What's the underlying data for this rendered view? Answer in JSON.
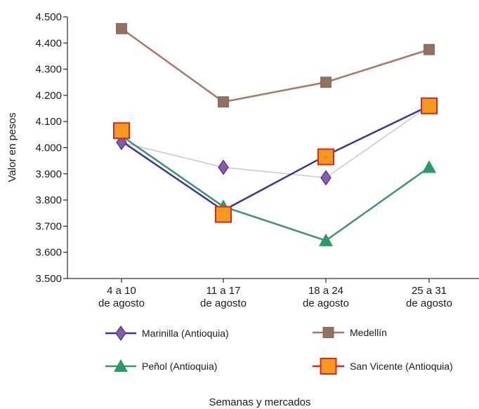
{
  "chart_data": {
    "type": "line",
    "title": "",
    "xlabel": "Semanas y mercados",
    "ylabel": "Valor en pesos",
    "ylim": [
      3500,
      4500
    ],
    "yticks": [
      "3.500",
      "3.600",
      "3.700",
      "3.800",
      "3.900",
      "4.000",
      "4.100",
      "4.200",
      "4.300",
      "4.400",
      "4.500"
    ],
    "grid": false,
    "legend_position": "bottom",
    "categories": [
      [
        "4 a 10",
        "de agosto"
      ],
      [
        "11 a 17",
        "de agosto"
      ],
      [
        "18 a 24",
        "de agosto"
      ],
      [
        "25 a 31",
        "de agosto"
      ]
    ],
    "series": [
      {
        "name": "Marinilla (Antioquia)",
        "marker": "diamond",
        "color": "#3b3594",
        "marker_color": "#8a5ba8",
        "values": [
          4025,
          3760,
          3970,
          4160
        ]
      },
      {
        "name": "Medellín",
        "marker": "square",
        "color": "#a97763",
        "marker_color": "#93705f",
        "values": [
          4455,
          4175,
          4250,
          4375
        ]
      },
      {
        "name": "Peñol (Antioquia)",
        "marker": "triangle",
        "color": "#3e9272",
        "marker_color": "#2a9a66",
        "values": [
          4045,
          3775,
          3645,
          3925
        ]
      },
      {
        "name": "San Vicente (Antioquia)",
        "marker": "square-large",
        "color": "#c9c9c9",
        "marker_color": "#f59a1e",
        "marker_stroke": "#d8281d",
        "values": [
          4065,
          3745,
          3965,
          4160
        ]
      }
    ],
    "extra_points": {
      "series": "Marinilla (Antioquia)",
      "values": [
        4020,
        3925,
        3885,
        4160
      ]
    }
  }
}
